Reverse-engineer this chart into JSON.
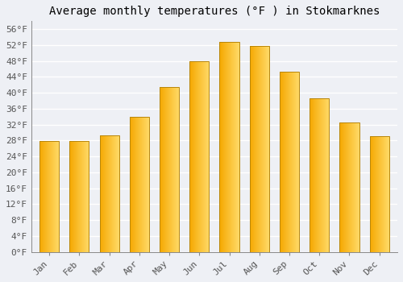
{
  "title": "Average monthly temperatures (°F ) in Stokmarknes",
  "months": [
    "Jan",
    "Feb",
    "Mar",
    "Apr",
    "May",
    "Jun",
    "Jul",
    "Aug",
    "Sep",
    "Oct",
    "Nov",
    "Dec"
  ],
  "values": [
    27.9,
    27.9,
    29.3,
    34.0,
    41.5,
    48.0,
    52.7,
    51.8,
    45.3,
    38.7,
    32.5,
    29.1
  ],
  "bar_color_left": "#F5A800",
  "bar_color_right": "#FFD966",
  "bar_edge_color": "#B8860B",
  "background_color": "#EEF0F5",
  "grid_color": "#FFFFFF",
  "ylim": [
    0,
    58
  ],
  "ytick_min": 0,
  "ytick_max": 56,
  "ytick_step": 4,
  "title_fontsize": 10,
  "tick_fontsize": 8
}
